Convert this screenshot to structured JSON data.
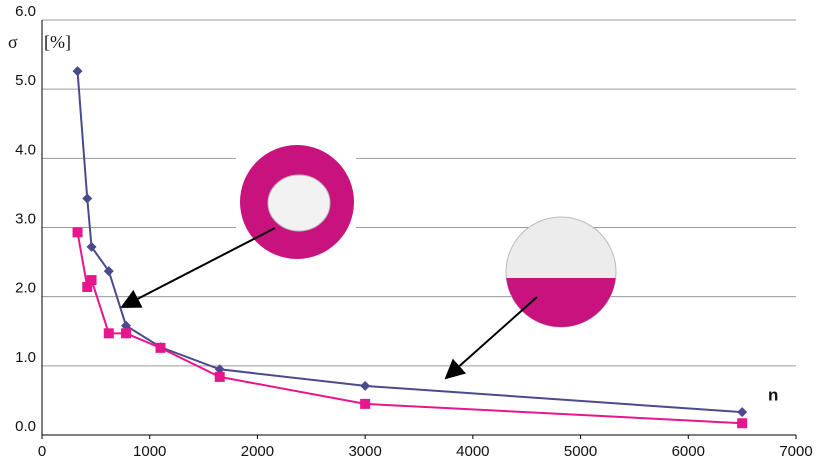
{
  "chart_data": {
    "type": "line",
    "y_label": "σ",
    "y_unit": "[%]",
    "x_label": "n",
    "x": [
      330,
      420,
      460,
      620,
      780,
      1100,
      1650,
      3000,
      6500
    ],
    "series": [
      {
        "color": "#4b4a8c",
        "marker": "diamond",
        "values": [
          5.26,
          3.42,
          2.72,
          2.37,
          1.58,
          1.27,
          0.95,
          0.71,
          0.33
        ]
      },
      {
        "color": "#e6168c",
        "marker": "square",
        "values": [
          2.93,
          2.14,
          2.24,
          1.47,
          1.47,
          1.26,
          0.84,
          0.45,
          0.17
        ]
      }
    ],
    "xlim": [
      0,
      7000
    ],
    "xticks": [
      0,
      1000,
      2000,
      3000,
      4000,
      5000,
      6000,
      7000
    ],
    "ylim": [
      0,
      6
    ],
    "yticks": [
      {
        "value": 0,
        "label": "0.0"
      },
      {
        "value": 1,
        "label": "1.0"
      },
      {
        "value": 2,
        "label": "2.0"
      },
      {
        "value": 3,
        "label": "3.0"
      },
      {
        "value": 4,
        "label": "4.0"
      },
      {
        "value": 5,
        "label": "5.0"
      },
      {
        "value": 6,
        "label": "6.0"
      }
    ],
    "grid": true
  }
}
